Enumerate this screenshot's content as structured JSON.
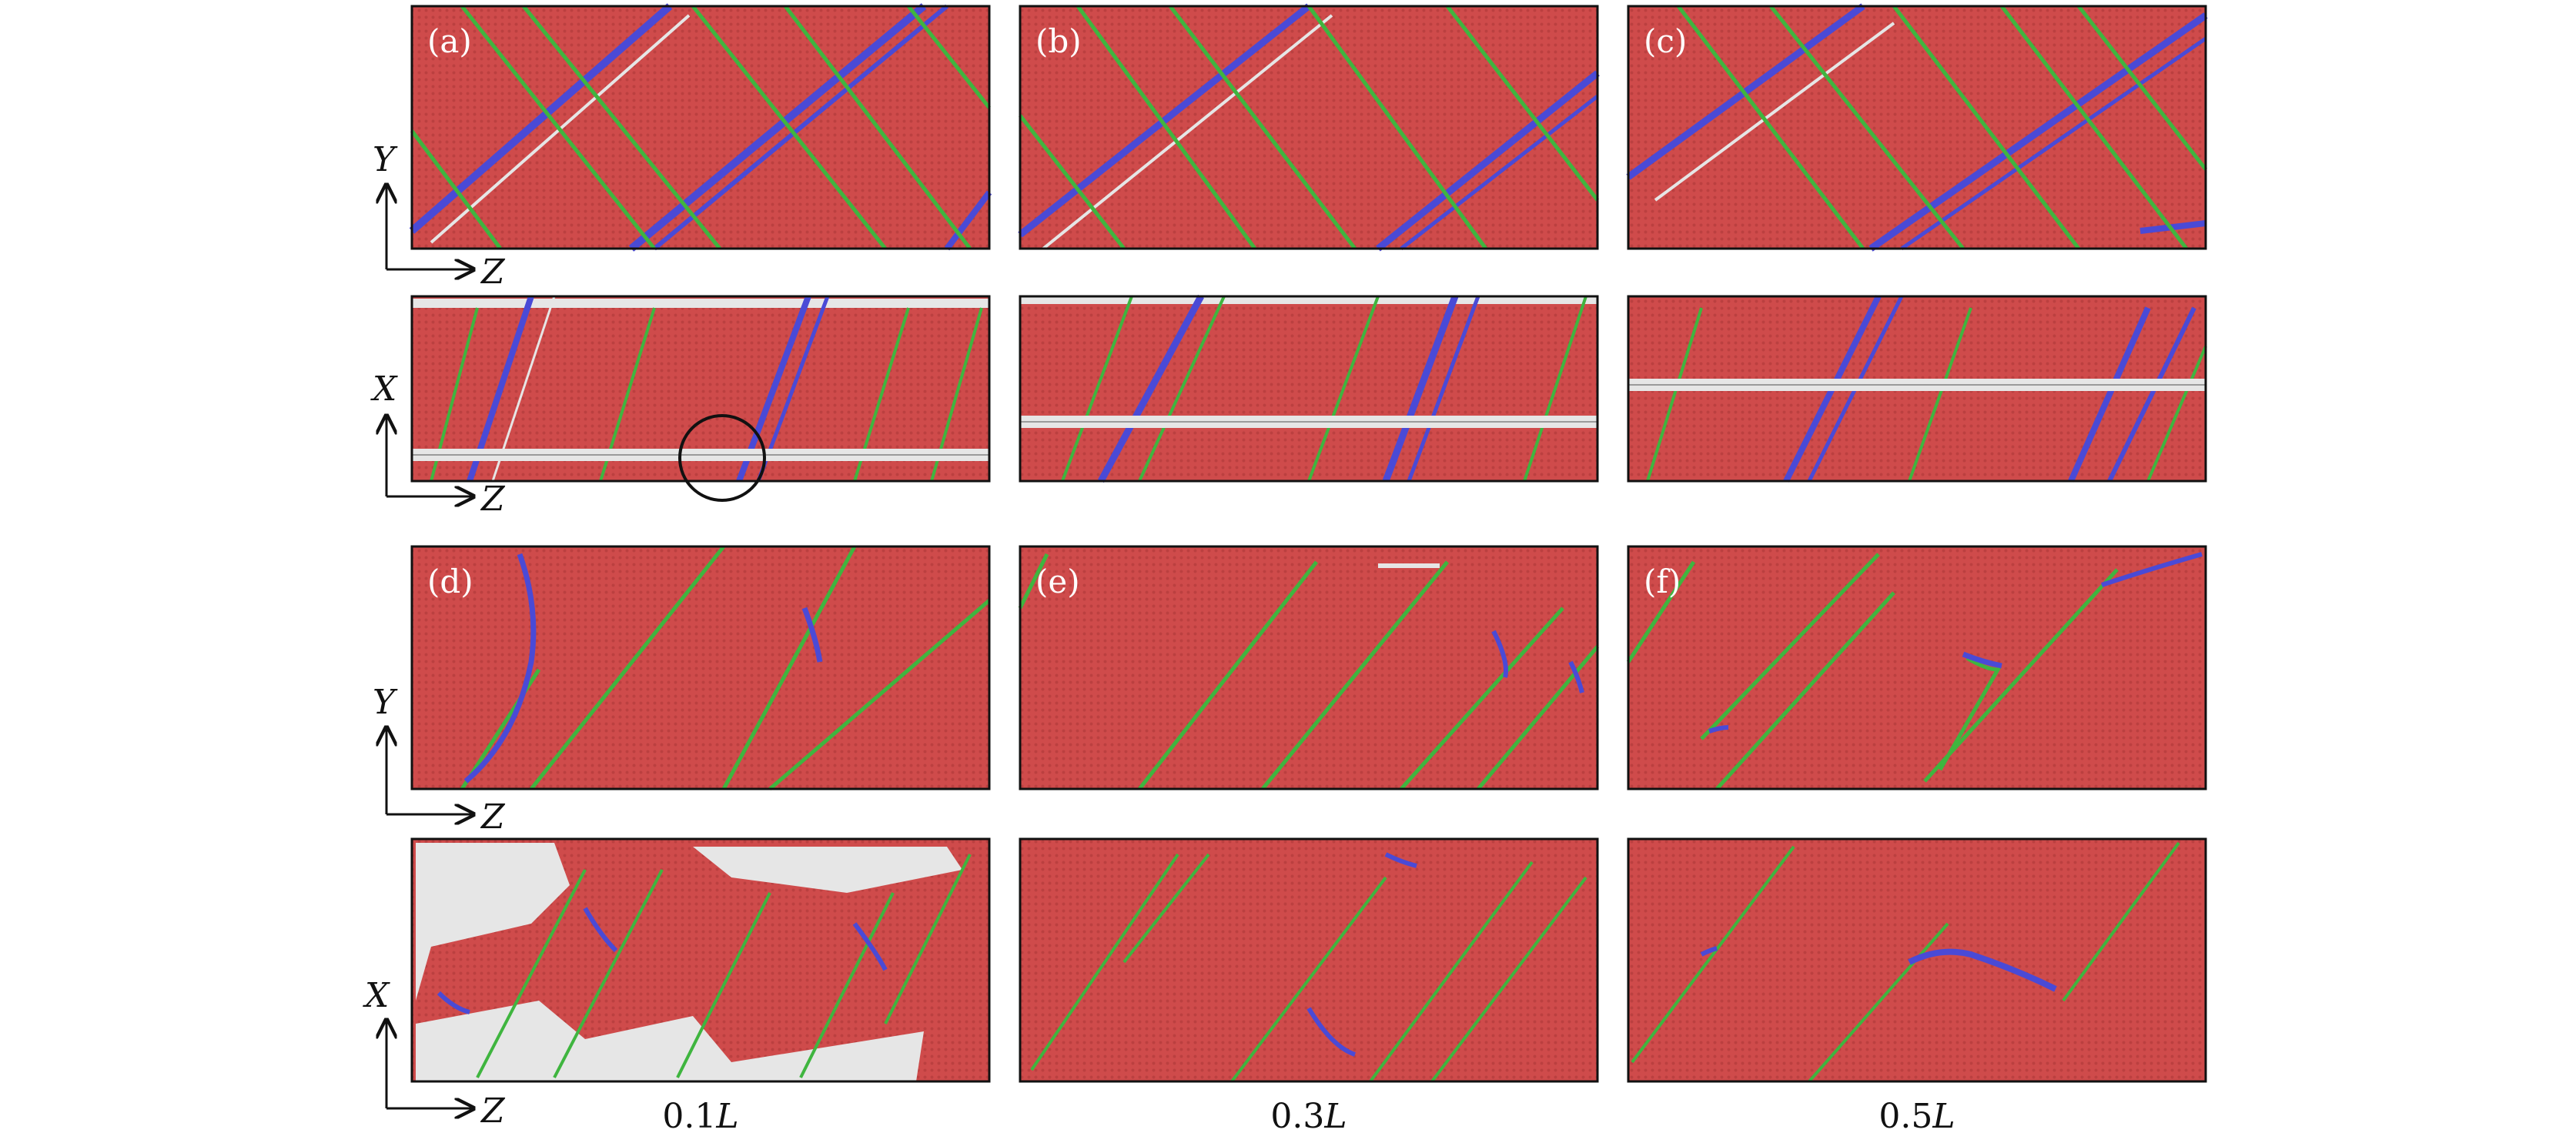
{
  "panels": {
    "a": "(a)",
    "b": "(b)",
    "c": "(c)",
    "d": "(d)",
    "e": "(e)",
    "f": "(f)"
  },
  "axes": {
    "row1": {
      "vertical": "Y",
      "horizontal": "Z"
    },
    "row2": {
      "vertical": "X",
      "horizontal": "Z"
    },
    "row3": {
      "vertical": "Y",
      "horizontal": "Z"
    },
    "row4": {
      "vertical": "X",
      "horizontal": "Z"
    }
  },
  "columns": [
    {
      "value": "0.1",
      "unit": "L"
    },
    {
      "value": "0.3",
      "unit": "L"
    },
    {
      "value": "0.5",
      "unit": "L"
    }
  ],
  "colors": {
    "matrix": "#cf4b4b",
    "stacking_fault": "#3fb53f",
    "dislocation_core": "#4a4ad6",
    "disordered": "#e6e6e6"
  }
}
